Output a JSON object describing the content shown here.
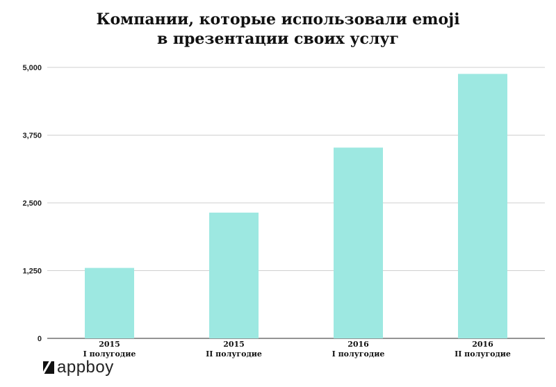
{
  "chart_data": {
    "type": "bar",
    "title_line1": "Компании, которые использовали emoji",
    "title_line2": "в презентации своих услуг",
    "categories": [
      {
        "year": "2015",
        "half": "I полугодие"
      },
      {
        "year": "2015",
        "half": "II полугодие"
      },
      {
        "year": "2016",
        "half": "I полугодие"
      },
      {
        "year": "2016",
        "half": "II полугодие"
      }
    ],
    "values": [
      1300,
      2320,
      3520,
      4880
    ],
    "ylim": [
      0,
      5000
    ],
    "yticks": [
      0,
      1250,
      2500,
      3750,
      5000
    ],
    "ytick_labels": [
      "0",
      "1,250",
      "2,500",
      "3,750",
      "5,000"
    ],
    "bar_color": "#9de8e1",
    "grid": true
  },
  "brand": {
    "logo_text": "appboy",
    "logo_icon": "appboy-mark-icon"
  }
}
